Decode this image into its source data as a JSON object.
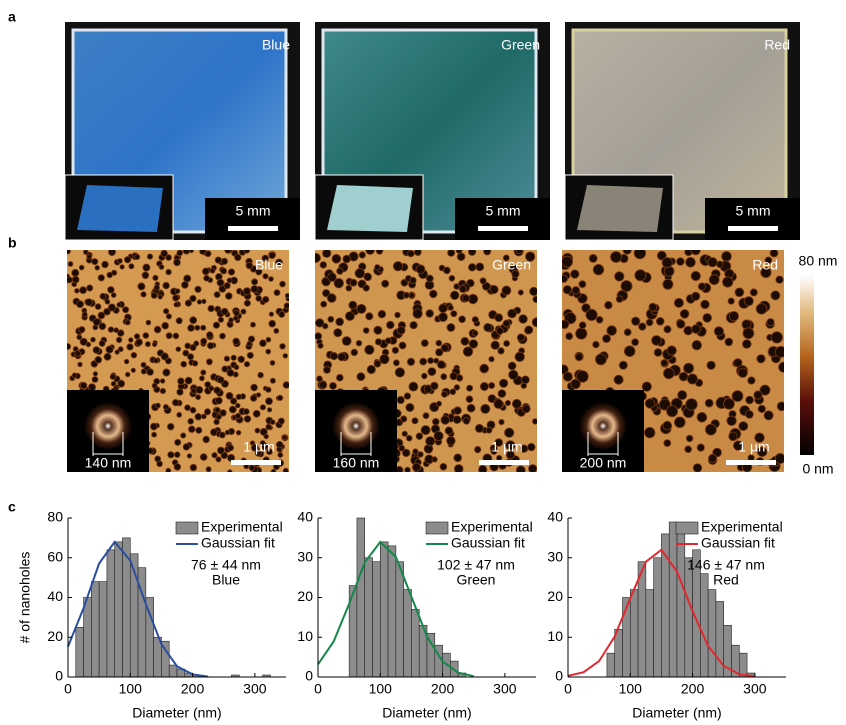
{
  "panel_labels": [
    "a",
    "b",
    "c"
  ],
  "photos": [
    {
      "label": "Blue",
      "scale_bar": "5 mm"
    },
    {
      "label": "Green",
      "scale_bar": "5 mm"
    },
    {
      "label": "Red",
      "scale_bar": "5 mm"
    }
  ],
  "afm": [
    {
      "label": "Blue",
      "scale_bar": "1 µm",
      "fft_label": "140 nm"
    },
    {
      "label": "Green",
      "scale_bar": "1 µm",
      "fft_label": "160 nm"
    },
    {
      "label": "Red",
      "scale_bar": "1 µm",
      "fft_label": "200 nm"
    }
  ],
  "colorbar": {
    "max_label": "80 nm",
    "min_label": "0 nm"
  },
  "chart_data": [
    {
      "type": "histogram",
      "xlabel": "Diameter (nm)",
      "ylabel": "# of nanoholes",
      "annotation": [
        "76 ± 44 nm",
        "Blue"
      ],
      "xlim": [
        0,
        350
      ],
      "xticks": [
        0,
        100,
        200,
        300
      ],
      "ylim": [
        0,
        80
      ],
      "yticks": [
        0,
        20,
        40,
        60,
        80
      ],
      "series": [
        {
          "name": "Experimental",
          "color": "#8c8c8c",
          "bins": [
            12.5,
            25,
            37.5,
            50,
            62.5,
            75,
            87.5,
            100,
            112.5,
            125,
            137.5,
            150,
            162.5,
            175,
            187.5,
            200,
            212.5,
            225,
            237.5,
            250,
            262.5,
            275,
            287.5,
            300,
            312.5,
            325
          ],
          "values": [
            25,
            40,
            48,
            48,
            64,
            68,
            70,
            62,
            55,
            40,
            20,
            18,
            6,
            4,
            2,
            1,
            0,
            0,
            0,
            0,
            1,
            0,
            0,
            0,
            1
          ]
        },
        {
          "name": "Gaussian fit",
          "color": "#2b4ea0",
          "x": [
            0,
            25,
            50,
            75,
            100,
            125,
            150,
            175,
            200,
            225
          ],
          "values": [
            15.3,
            34.7,
            57.1,
            68,
            58.6,
            36.6,
            16.5,
            5.4,
            1.3,
            0.2
          ]
        }
      ]
    },
    {
      "type": "histogram",
      "xlabel": "Diameter (nm)",
      "annotation": [
        "102 ± 47 nm",
        "Green"
      ],
      "xlim": [
        0,
        350
      ],
      "xticks": [
        0,
        100,
        200,
        300
      ],
      "ylim": [
        0,
        40
      ],
      "yticks": [
        0,
        10,
        20,
        30,
        40
      ],
      "series": [
        {
          "name": "Experimental",
          "color": "#8c8c8c",
          "bins": [
            50,
            62.5,
            75,
            87.5,
            100,
            112.5,
            125,
            137.5,
            150,
            162.5,
            175,
            187.5,
            200,
            212.5,
            225,
            237.5
          ],
          "values": [
            23,
            40,
            30,
            29,
            34,
            33,
            29,
            22,
            17,
            13,
            11,
            8,
            6,
            4,
            1
          ]
        },
        {
          "name": "Gaussian fit",
          "color": "#14884a",
          "x": [
            0,
            25,
            50,
            75,
            100,
            125,
            150,
            175,
            200,
            225,
            250
          ],
          "values": [
            3.2,
            8.9,
            18.4,
            28.8,
            34,
            30.2,
            20.2,
            10.2,
            3.9,
            1.1,
            0.2
          ]
        }
      ]
    },
    {
      "type": "histogram",
      "xlabel": "Diameter (nm)",
      "annotation": [
        "146 ± 47 nm",
        "Red"
      ],
      "xlim": [
        0,
        350
      ],
      "xticks": [
        0,
        100,
        200,
        300
      ],
      "ylim": [
        0,
        40
      ],
      "yticks": [
        0,
        10,
        20,
        30,
        40
      ],
      "series": [
        {
          "name": "Experimental",
          "color": "#8c8c8c",
          "bins": [
            62.5,
            75,
            87.5,
            100,
            112.5,
            125,
            137.5,
            150,
            162.5,
            175,
            187.5,
            200,
            212.5,
            225,
            237.5,
            250,
            262.5,
            275,
            287.5,
            300
          ],
          "values": [
            6,
            12,
            20,
            22,
            29,
            22,
            30,
            36,
            39,
            37,
            30,
            32,
            26,
            22,
            19,
            13,
            8,
            6,
            1
          ]
        },
        {
          "name": "Gaussian fit",
          "color": "#e0282e",
          "x": [
            0,
            25,
            50,
            75,
            100,
            125,
            150,
            175,
            200,
            225,
            250,
            275,
            300
          ],
          "values": [
            0.3,
            1.2,
            4,
            10.2,
            19.8,
            29,
            32,
            26.5,
            16.5,
            7.8,
            2.8,
            0.7,
            0.15
          ]
        }
      ]
    }
  ]
}
